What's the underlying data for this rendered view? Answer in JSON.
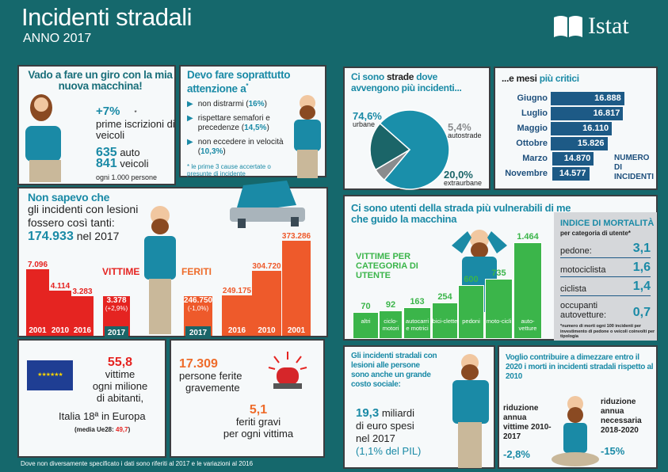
{
  "header": {
    "title": "Incidenti stradali",
    "subtitle": "ANNO 2017",
    "logo": "Istat"
  },
  "car_panel": {
    "heading": "Vado a fare un giro con la mia nuova macchina!",
    "pct": "+7%",
    "asterisk": "*",
    "pct_text": "prime iscrizioni di veicoli",
    "auto_value": "635",
    "auto_label": "auto",
    "veicoli_value": "841",
    "veicoli_label": "veicoli",
    "per": "ogni 1.000 persone"
  },
  "attention_panel": {
    "heading": "Devo fare soprattutto attenzione a",
    "heading_mark": "*",
    "items": [
      {
        "text": "non distrarmi",
        "pct": "16%"
      },
      {
        "text": "rispettare semafori e precedenze",
        "pct": "14,5%"
      },
      {
        "text": "non eccedere in velocità",
        "pct": "10,3%"
      }
    ],
    "note": "* le prime 3 cause accertate o presunte di incidente"
  },
  "injuries_panel": {
    "line1": "Non sapevo che",
    "line2": "gli incidenti con lesioni",
    "line3": "fossero così tanti:",
    "value": "174.933",
    "value_suffix": "nel 2017",
    "vittime_label": "VITTIME",
    "feriti_label": "FERITI"
  },
  "chart_data": [
    {
      "type": "bar",
      "title": "VITTIME",
      "categories": [
        "2001",
        "2010",
        "2016",
        "2017"
      ],
      "values": [
        7096,
        4114,
        3283,
        3378
      ],
      "labels": [
        "7.096",
        "4.114",
        "3.283",
        "3.378"
      ],
      "note_2017": "(+2,9%)",
      "color": "#e52421"
    },
    {
      "type": "bar",
      "title": "FERITI",
      "categories": [
        "2017",
        "2016",
        "2010",
        "2001"
      ],
      "values": [
        246750,
        249175,
        304720,
        373286
      ],
      "labels": [
        "246.750",
        "249.175",
        "304.720",
        "373.286"
      ],
      "note_2017": "(-1,0%)",
      "color": "#ee5a2b"
    },
    {
      "type": "pie",
      "title": "Ci sono strade dove avvengono più incidenti...",
      "slices": [
        {
          "name": "urbane",
          "value": 74.6,
          "label": "74,6%",
          "color": "#1a8faa"
        },
        {
          "name": "autostrade",
          "value": 5.4,
          "label": "5,4%",
          "color": "#8a8c8e"
        },
        {
          "name": "extraurbane",
          "value": 20.0,
          "label": "20,0%",
          "color": "#1b6568"
        }
      ]
    },
    {
      "type": "bar",
      "orientation": "horizontal",
      "title": "...e mesi più critici",
      "legend": "NUMERO DI INCIDENTI",
      "categories": [
        "Giugno",
        "Luglio",
        "Maggio",
        "Ottobre",
        "Marzo",
        "Novembre"
      ],
      "values": [
        16888,
        16817,
        16110,
        15826,
        14870,
        14577
      ],
      "labels": [
        "16.888",
        "16.817",
        "16.110",
        "15.826",
        "14.870",
        "14.577"
      ],
      "color": "#1d5a86"
    },
    {
      "type": "bar",
      "title": "VITTIME PER CATEGORIA DI UTENTE",
      "categories": [
        "altri",
        "ciclo-motori",
        "autocarri e motrici",
        "bici-clette",
        "pedoni",
        "moto-cicli",
        "auto-vetture"
      ],
      "values": [
        70,
        92,
        163,
        254,
        600,
        735,
        1464
      ],
      "labels": [
        "70",
        "92",
        "163",
        "254",
        "600",
        "735",
        "1.464"
      ],
      "color": "#3bb54a"
    }
  ],
  "vulnerable_panel": {
    "heading": "Ci sono utenti della strada più vulnerabili di me che guido la macchina",
    "chart_label": "VITTIME PER CATEGORIA DI UTENTE"
  },
  "months_panel": {
    "heading_a": "...e mesi ",
    "heading_b": "più critici",
    "legend": "NUMERO DI INCIDENTI"
  },
  "roads_panel": {
    "heading_a": "Ci sono ",
    "heading_b": "strade",
    "heading_c": " dove avvengono più incidenti..."
  },
  "mortality": {
    "title": "INDICE DI MORTALITÀ",
    "subtitle": "per categoria di utente*",
    "rows": [
      {
        "label": "pedone:",
        "value": "3,1"
      },
      {
        "label": "motociclista",
        "value": "1,6"
      },
      {
        "label": "ciclista",
        "value": "1,4"
      },
      {
        "label": "occupanti autovetture:",
        "value": "0,7"
      }
    ],
    "note": "*numero di morti ogni 100 incidenti per investimento di pedone o veicoli coinvolti per tipologia"
  },
  "europe_panel": {
    "value": "55,8",
    "l1": "vittime",
    "l2": "ogni milione",
    "l3": "di abitanti,",
    "l4": "Italia 18ª in Europa",
    "media_label": "(media Ue28: ",
    "media_value": "49,7",
    "media_close": ")"
  },
  "serious_panel": {
    "value": "17.309",
    "l1": "persone ferite",
    "l2": "gravemente",
    "ratio": "5,1",
    "r1": "feriti gravi",
    "r2": "per ogni vittima"
  },
  "cost_panel": {
    "heading": "Gli incidenti stradali con lesioni alle persone sono anche un grande costo sociale:",
    "value": "19,3",
    "unit": "miliardi",
    "l2": "di euro spesi",
    "l3": "nel 2017",
    "pil": "(1,1% del PIL)"
  },
  "target_panel": {
    "heading": "Voglio contribuire a dimezzare entro il 2020 i morti in incidenti stradali rispetto al 2010",
    "left_label": "riduzione annua vittime 2010-2017",
    "left_value": "-2,8%",
    "right_label": "riduzione annua necessaria 2018-2020",
    "right_value": "-15%"
  },
  "footer": {
    "note": "Dove non diversamente specificato i dati sono riferiti al 2017 e le variazioni al 2016"
  },
  "colors": {
    "background": "#15686c",
    "accent": "#1a8aa6",
    "red": "#e52421",
    "orange": "#ee6c2b",
    "green": "#3bb54a",
    "navy": "#1d5a86"
  }
}
